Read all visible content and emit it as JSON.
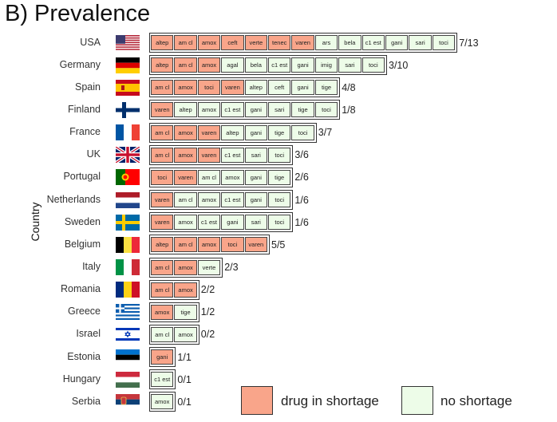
{
  "panel_title": "B) Prevalence",
  "colors": {
    "shortage": "#F9A58A",
    "no_shortage": "#EDFCE8"
  },
  "chart_data": {
    "type": "table",
    "ylabel": "Country",
    "legend": [
      "drug in shortage",
      "no shortage"
    ],
    "rows": [
      {
        "country": "USA",
        "flag": "usa",
        "ratio": "7/13",
        "shortage": 7,
        "drugs": [
          "altep",
          "am cl",
          "amox",
          "ceft",
          "verte",
          "tenec",
          "varen",
          "ars",
          "bela",
          "c1 est",
          "gani",
          "sari",
          "toci"
        ]
      },
      {
        "country": "Germany",
        "flag": "germany",
        "ratio": "3/10",
        "shortage": 3,
        "drugs": [
          "altep",
          "am cl",
          "amox",
          "agal",
          "bela",
          "c1 est",
          "gani",
          "imig",
          "sari",
          "toci"
        ]
      },
      {
        "country": "Spain",
        "flag": "spain",
        "ratio": "4/8",
        "shortage": 4,
        "drugs": [
          "am cl",
          "amox",
          "toci",
          "varen",
          "altep",
          "ceft",
          "gani",
          "tige"
        ]
      },
      {
        "country": "Finland",
        "flag": "finland",
        "ratio": "1/8",
        "shortage": 1,
        "drugs": [
          "varen",
          "altep",
          "amox",
          "c1 est",
          "gani",
          "sari",
          "tige",
          "toci"
        ]
      },
      {
        "country": "France",
        "flag": "france",
        "ratio": "3/7",
        "shortage": 3,
        "drugs": [
          "am cl",
          "amox",
          "varen",
          "altep",
          "gani",
          "tige",
          "toci"
        ]
      },
      {
        "country": "UK",
        "flag": "uk",
        "ratio": "3/6",
        "shortage": 3,
        "drugs": [
          "am cl",
          "amox",
          "varen",
          "c1 est",
          "sari",
          "toci"
        ]
      },
      {
        "country": "Portugal",
        "flag": "portugal",
        "ratio": "2/6",
        "shortage": 2,
        "drugs": [
          "toci",
          "varen",
          "am cl",
          "amox",
          "gani",
          "tige"
        ]
      },
      {
        "country": "Netherlands",
        "flag": "netherlands",
        "ratio": "1/6",
        "shortage": 1,
        "drugs": [
          "varen",
          "am cl",
          "amox",
          "c1 est",
          "gani",
          "toci"
        ]
      },
      {
        "country": "Sweden",
        "flag": "sweden",
        "ratio": "1/6",
        "shortage": 1,
        "drugs": [
          "varen",
          "amox",
          "c1 est",
          "gani",
          "sari",
          "toci"
        ]
      },
      {
        "country": "Belgium",
        "flag": "belgium",
        "ratio": "5/5",
        "shortage": 5,
        "drugs": [
          "altep",
          "am cl",
          "amox",
          "toci",
          "varen"
        ]
      },
      {
        "country": "Italy",
        "flag": "italy",
        "ratio": "2/3",
        "shortage": 2,
        "drugs": [
          "am cl",
          "amox",
          "verte"
        ]
      },
      {
        "country": "Romania",
        "flag": "romania",
        "ratio": "2/2",
        "shortage": 2,
        "drugs": [
          "am cl",
          "amox"
        ]
      },
      {
        "country": "Greece",
        "flag": "greece",
        "ratio": "1/2",
        "shortage": 1,
        "drugs": [
          "amox",
          "tige"
        ]
      },
      {
        "country": "Israel",
        "flag": "israel",
        "ratio": "0/2",
        "shortage": 0,
        "drugs": [
          "am cl",
          "amox"
        ]
      },
      {
        "country": "Estonia",
        "flag": "estonia",
        "ratio": "1/1",
        "shortage": 1,
        "drugs": [
          "gani"
        ]
      },
      {
        "country": "Hungary",
        "flag": "hungary",
        "ratio": "0/1",
        "shortage": 0,
        "drugs": [
          "c1 est"
        ]
      },
      {
        "country": "Serbia",
        "flag": "serbia",
        "ratio": "0/1",
        "shortage": 0,
        "drugs": [
          "amox"
        ]
      }
    ]
  }
}
